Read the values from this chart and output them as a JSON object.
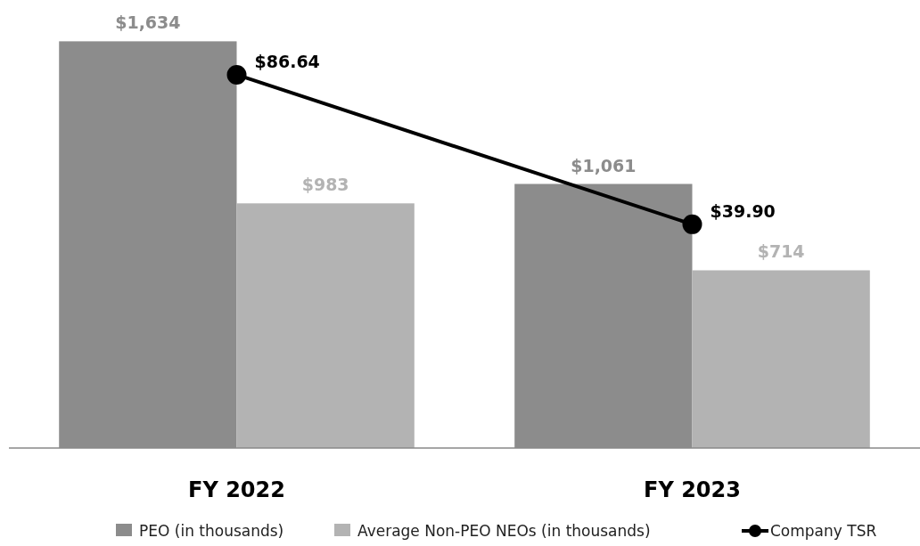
{
  "chart_data": {
    "type": "bar",
    "categories": [
      "FY 2022",
      "FY 2023"
    ],
    "series": [
      {
        "name": "PEO (in thousands)",
        "color": "#8c8c8c",
        "values": [
          1634,
          1061
        ],
        "value_labels": [
          "$1,634",
          "$1,061"
        ]
      },
      {
        "name": "Average Non-PEO NEOs (in thousands)",
        "color": "#b3b3b3",
        "values": [
          983,
          714
        ],
        "value_labels": [
          "$983",
          "$714"
        ]
      },
      {
        "name": "Company TSR",
        "type": "line",
        "axis": "y2",
        "color": "#000000",
        "values": [
          86.64,
          39.9
        ],
        "value_labels": [
          "$86.64",
          "$39.90"
        ],
        "marker": "circle"
      }
    ],
    "ylim": [
      0,
      1800
    ],
    "y2lim": [
      -30,
      110
    ],
    "tick_labels": "x",
    "legend": "bottom"
  }
}
